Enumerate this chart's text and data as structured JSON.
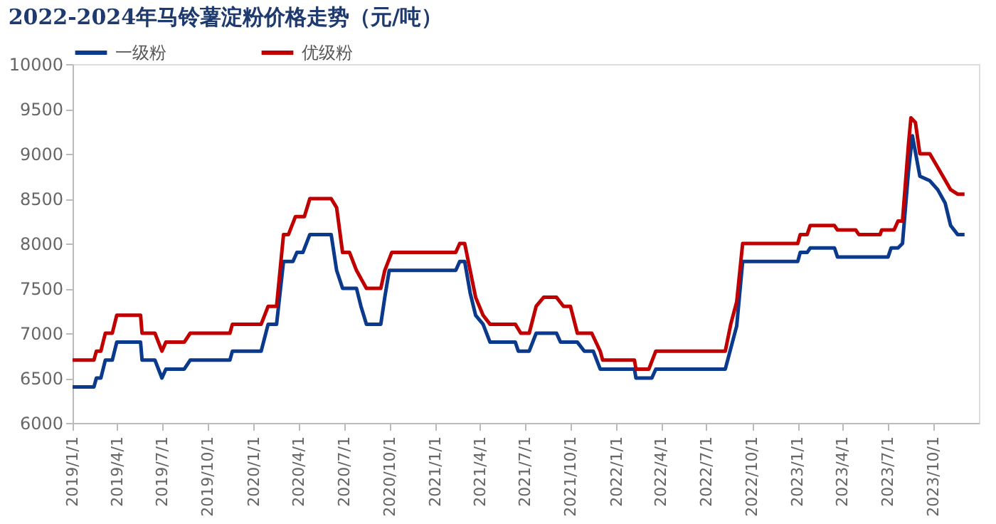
{
  "chart_data": {
    "type": "line",
    "title": "2022-2024年马铃薯淀粉价格走势（元/吨）",
    "xlim": [
      "2019-01-01",
      "2024-01-01"
    ],
    "xticks": [
      {
        "value": "2019-01-01",
        "label": "2019/1/1"
      },
      {
        "value": "2019-04-01",
        "label": "2019/4/1"
      },
      {
        "value": "2019-07-01",
        "label": "2019/7/1"
      },
      {
        "value": "2019-10-01",
        "label": "2019/10/1"
      },
      {
        "value": "2020-01-01",
        "label": "2020/1/1"
      },
      {
        "value": "2020-04-01",
        "label": "2020/4/1"
      },
      {
        "value": "2020-07-01",
        "label": "2020/7/1"
      },
      {
        "value": "2020-10-01",
        "label": "2020/10/1"
      },
      {
        "value": "2021-01-01",
        "label": "2021/1/1"
      },
      {
        "value": "2021-04-01",
        "label": "2021/4/1"
      },
      {
        "value": "2021-07-01",
        "label": "2021/7/1"
      },
      {
        "value": "2021-10-01",
        "label": "2021/10/1"
      },
      {
        "value": "2022-01-01",
        "label": "2022/1/1"
      },
      {
        "value": "2022-04-01",
        "label": "2022/4/1"
      },
      {
        "value": "2022-07-01",
        "label": "2022/7/1"
      },
      {
        "value": "2022-10-01",
        "label": "2022/10/1"
      },
      {
        "value": "2023-01-01",
        "label": "2023/1/1"
      },
      {
        "value": "2023-04-01",
        "label": "2023/4/1"
      },
      {
        "value": "2023-07-01",
        "label": "2023/7/1"
      },
      {
        "value": "2023-10-01",
        "label": "2023/10/1"
      }
    ],
    "ylim": [
      6000,
      10000
    ],
    "yticks": [
      6000,
      6500,
      7000,
      7500,
      8000,
      8500,
      9000,
      9500,
      10000
    ],
    "grid": false,
    "legend": "top",
    "marker": "none",
    "line_style": "solid",
    "series": [
      {
        "name": "一级粉",
        "color": "#0b3a8c",
        "x": [
          "2019-01-01",
          "2019-02-13",
          "2019-02-18",
          "2019-02-27",
          "2019-03-08",
          "2019-03-22",
          "2019-03-31",
          "2019-05-18",
          "2019-05-21",
          "2019-06-16",
          "2019-06-30",
          "2019-07-08",
          "2019-08-14",
          "2019-08-26",
          "2019-11-14",
          "2019-11-19",
          "2020-01-16",
          "2020-01-30",
          "2020-02-16",
          "2020-03-01",
          "2020-03-20",
          "2020-03-28",
          "2020-04-09",
          "2020-04-23",
          "2020-06-05",
          "2020-06-16",
          "2020-06-28",
          "2020-07-26",
          "2020-08-04",
          "2020-08-15",
          "2020-09-13",
          "2020-09-21",
          "2020-09-30",
          "2021-02-11",
          "2021-02-19",
          "2021-03-01",
          "2021-03-12",
          "2021-03-23",
          "2021-04-07",
          "2021-04-21",
          "2021-06-11",
          "2021-06-17",
          "2021-07-09",
          "2021-07-23",
          "2021-09-02",
          "2021-09-10",
          "2021-10-14",
          "2021-10-28",
          "2021-11-15",
          "2021-11-29",
          "2022-02-06",
          "2022-02-09",
          "2022-03-13",
          "2022-03-21",
          "2022-08-08",
          "2022-08-31",
          "2022-09-12",
          "2023-01-01",
          "2023-01-06",
          "2023-01-20",
          "2023-01-26",
          "2023-03-16",
          "2023-03-22",
          "2023-07-02",
          "2023-07-08",
          "2023-07-22",
          "2023-07-31",
          "2023-08-12",
          "2023-08-20",
          "2023-09-04",
          "2023-09-24",
          "2023-10-10",
          "2023-10-25",
          "2023-11-05",
          "2023-11-19",
          "2023-12-03"
        ],
        "values": [
          6400,
          6400,
          6500,
          6500,
          6700,
          6700,
          6900,
          6900,
          6700,
          6700,
          6500,
          6600,
          6600,
          6700,
          6700,
          6800,
          6800,
          7100,
          7100,
          7800,
          7800,
          7900,
          7900,
          8100,
          8100,
          7700,
          7500,
          7500,
          7300,
          7100,
          7100,
          7400,
          7700,
          7700,
          7800,
          7800,
          7450,
          7200,
          7100,
          6900,
          6900,
          6800,
          6800,
          7000,
          7000,
          6900,
          6900,
          6800,
          6800,
          6600,
          6600,
          6500,
          6500,
          6600,
          6600,
          7080,
          7800,
          7800,
          7900,
          7900,
          7950,
          7950,
          7850,
          7850,
          7950,
          7950,
          8000,
          8800,
          9200,
          8750,
          8700,
          8600,
          8450,
          8200,
          8100,
          8100
        ]
      },
      {
        "name": "优级粉",
        "color": "#c00000",
        "x": [
          "2019-01-01",
          "2019-02-13",
          "2019-02-18",
          "2019-02-27",
          "2019-03-08",
          "2019-03-22",
          "2019-03-31",
          "2019-05-18",
          "2019-05-21",
          "2019-06-16",
          "2019-06-30",
          "2019-07-08",
          "2019-08-14",
          "2019-08-26",
          "2019-11-14",
          "2019-11-19",
          "2020-01-16",
          "2020-01-30",
          "2020-02-16",
          "2020-03-01",
          "2020-03-11",
          "2020-03-25",
          "2020-04-12",
          "2020-04-23",
          "2020-06-05",
          "2020-06-16",
          "2020-06-28",
          "2020-07-12",
          "2020-07-26",
          "2020-08-15",
          "2020-09-13",
          "2020-09-21",
          "2020-10-05",
          "2021-02-11",
          "2021-02-19",
          "2021-03-01",
          "2021-03-12",
          "2021-03-23",
          "2021-04-07",
          "2021-04-21",
          "2021-06-11",
          "2021-06-22",
          "2021-07-09",
          "2021-07-23",
          "2021-08-07",
          "2021-09-02",
          "2021-09-16",
          "2021-09-30",
          "2021-10-14",
          "2021-11-12",
          "2021-11-29",
          "2021-12-04",
          "2022-02-06",
          "2022-02-09",
          "2022-03-07",
          "2022-03-21",
          "2022-08-08",
          "2022-08-19",
          "2022-08-31",
          "2022-09-12",
          "2023-01-01",
          "2023-01-06",
          "2023-01-20",
          "2023-01-26",
          "2023-03-16",
          "2023-03-22",
          "2023-04-28",
          "2023-05-04",
          "2023-06-16",
          "2023-06-19",
          "2023-07-14",
          "2023-07-22",
          "2023-07-31",
          "2023-08-12",
          "2023-08-17",
          "2023-08-26",
          "2023-09-04",
          "2023-09-24",
          "2023-10-10",
          "2023-11-05",
          "2023-11-19",
          "2023-12-03"
        ],
        "values": [
          6700,
          6700,
          6800,
          6800,
          7000,
          7000,
          7200,
          7200,
          7000,
          7000,
          6800,
          6900,
          6900,
          7000,
          7000,
          7100,
          7100,
          7300,
          7300,
          8100,
          8100,
          8300,
          8300,
          8500,
          8500,
          8400,
          7900,
          7900,
          7700,
          7500,
          7500,
          7700,
          7900,
          7900,
          8000,
          8000,
          7700,
          7400,
          7200,
          7100,
          7100,
          7000,
          7000,
          7300,
          7400,
          7400,
          7300,
          7300,
          7000,
          7000,
          6800,
          6700,
          6700,
          6600,
          6600,
          6800,
          6800,
          7100,
          7350,
          8000,
          8000,
          8100,
          8100,
          8200,
          8200,
          8150,
          8150,
          8100,
          8100,
          8150,
          8150,
          8250,
          8250,
          9100,
          9400,
          9350,
          9000,
          9000,
          8850,
          8600,
          8550,
          8550
        ]
      }
    ]
  }
}
